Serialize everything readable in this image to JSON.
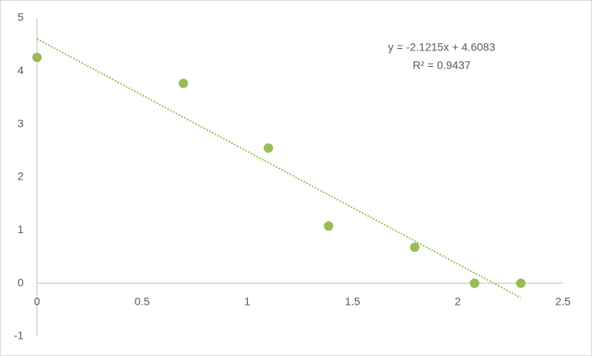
{
  "chart_data": {
    "type": "scatter",
    "x": [
      0,
      0.696,
      1.1,
      1.386,
      1.796,
      2.08,
      2.3
    ],
    "values": [
      4.26,
      3.77,
      2.55,
      1.08,
      0.68,
      0,
      0
    ],
    "color": "#9bbb59",
    "xlim": [
      0,
      2.5
    ],
    "xticks": [
      0,
      0.5,
      1,
      1.5,
      2,
      2.5
    ],
    "ylim": [
      -1,
      5
    ],
    "yticks": [
      -1,
      0,
      1,
      2,
      3,
      4,
      5
    ],
    "grid": false,
    "trendline": {
      "slope": -2.1215,
      "intercept": 4.6083,
      "equation": "y = -2.1215x + 4.6083",
      "r_squared": "R² = 0.9437"
    }
  }
}
